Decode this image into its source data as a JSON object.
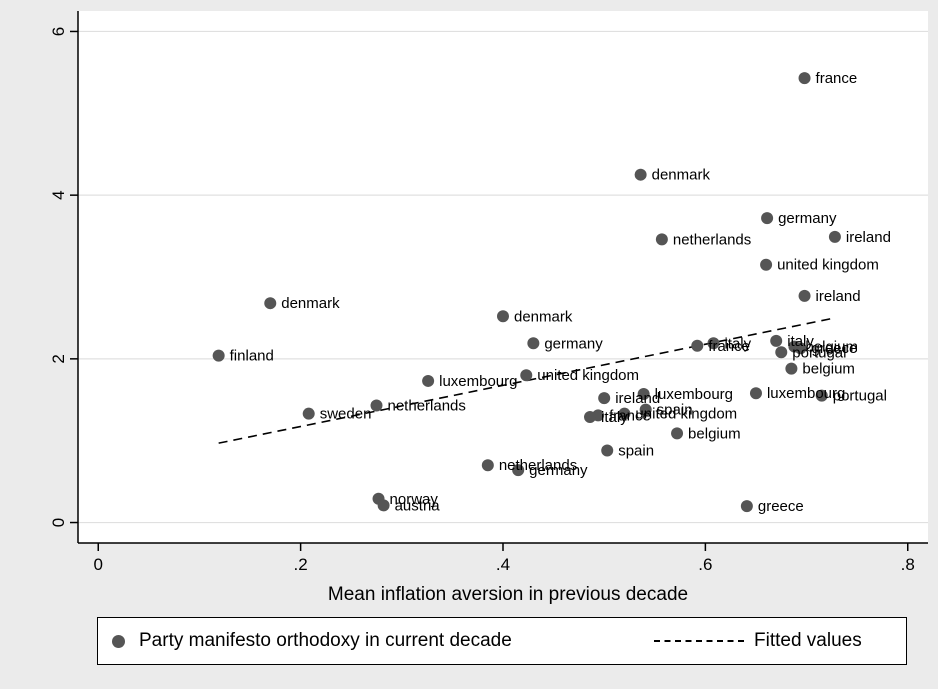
{
  "chart_data": {
    "type": "scatter",
    "xlabel": "Mean inflation aversion in previous decade",
    "ylabel": "",
    "xlim": [
      -0.02,
      0.82
    ],
    "ylim": [
      -0.25,
      6.25
    ],
    "x_ticks": [
      0,
      0.2,
      0.4,
      0.6,
      0.8
    ],
    "x_tick_labels": [
      "0",
      ".2",
      ".4",
      ".6",
      ".8"
    ],
    "y_ticks": [
      0,
      2,
      4,
      6
    ],
    "y_tick_labels": [
      "0",
      "2",
      "4",
      "6"
    ],
    "grid": "horizontal",
    "legend_position": "bottom",
    "colors": {
      "points": "#555555",
      "fit_line": "#000000",
      "plot_bg": "#ffffff",
      "outer_bg": "#ebebeb",
      "grid": "#e0e0e0"
    },
    "series": [
      {
        "name": "Party manifesto orthodoxy in current decade",
        "points": [
          {
            "x": 0.698,
            "y": 5.43,
            "label": "france"
          },
          {
            "x": 0.536,
            "y": 4.25,
            "label": "denmark"
          },
          {
            "x": 0.661,
            "y": 3.72,
            "label": "germany"
          },
          {
            "x": 0.728,
            "y": 3.49,
            "label": "ireland"
          },
          {
            "x": 0.557,
            "y": 3.46,
            "label": "netherlands"
          },
          {
            "x": 0.66,
            "y": 3.15,
            "label": "united kingdom"
          },
          {
            "x": 0.698,
            "y": 2.77,
            "label": "ireland"
          },
          {
            "x": 0.17,
            "y": 2.68,
            "label": "denmark"
          },
          {
            "x": 0.4,
            "y": 2.52,
            "label": "denmark"
          },
          {
            "x": 0.43,
            "y": 2.19,
            "label": "germany"
          },
          {
            "x": 0.119,
            "y": 2.04,
            "label": "finland"
          },
          {
            "x": 0.67,
            "y": 2.22,
            "label": "italy"
          },
          {
            "x": 0.608,
            "y": 2.19,
            "label": "italy"
          },
          {
            "x": 0.592,
            "y": 2.16,
            "label": "france"
          },
          {
            "x": 0.675,
            "y": 2.08,
            "label": "portugal"
          },
          {
            "x": 0.688,
            "y": 2.15,
            "label": "belgium"
          },
          {
            "x": 0.694,
            "y": 2.13,
            "label": "greece"
          },
          {
            "x": 0.685,
            "y": 1.88,
            "label": "belgium"
          },
          {
            "x": 0.326,
            "y": 1.73,
            "label": "luxembourg"
          },
          {
            "x": 0.423,
            "y": 1.8,
            "label": "united kingdom"
          },
          {
            "x": 0.539,
            "y": 1.57,
            "label": "luxembourg"
          },
          {
            "x": 0.65,
            "y": 1.58,
            "label": "luxembourg"
          },
          {
            "x": 0.715,
            "y": 1.55,
            "label": "portugal"
          },
          {
            "x": 0.5,
            "y": 1.52,
            "label": "ireland"
          },
          {
            "x": 0.275,
            "y": 1.43,
            "label": "netherlands"
          },
          {
            "x": 0.208,
            "y": 1.33,
            "label": "sweden"
          },
          {
            "x": 0.541,
            "y": 1.38,
            "label": "spain"
          },
          {
            "x": 0.52,
            "y": 1.33,
            "label": "united kingdom"
          },
          {
            "x": 0.494,
            "y": 1.31,
            "label": "france"
          },
          {
            "x": 0.486,
            "y": 1.29,
            "label": "italy"
          },
          {
            "x": 0.572,
            "y": 1.09,
            "label": "belgium"
          },
          {
            "x": 0.503,
            "y": 0.88,
            "label": "spain"
          },
          {
            "x": 0.385,
            "y": 0.7,
            "label": "netherlands"
          },
          {
            "x": 0.415,
            "y": 0.64,
            "label": "germany"
          },
          {
            "x": 0.277,
            "y": 0.29,
            "label": "norway"
          },
          {
            "x": 0.282,
            "y": 0.21,
            "label": "austria"
          },
          {
            "x": 0.641,
            "y": 0.2,
            "label": "greece"
          }
        ]
      },
      {
        "name": "Fitted values",
        "line": [
          {
            "x": 0.119,
            "y": 0.97
          },
          {
            "x": 0.728,
            "y": 2.5
          }
        ]
      }
    ]
  }
}
